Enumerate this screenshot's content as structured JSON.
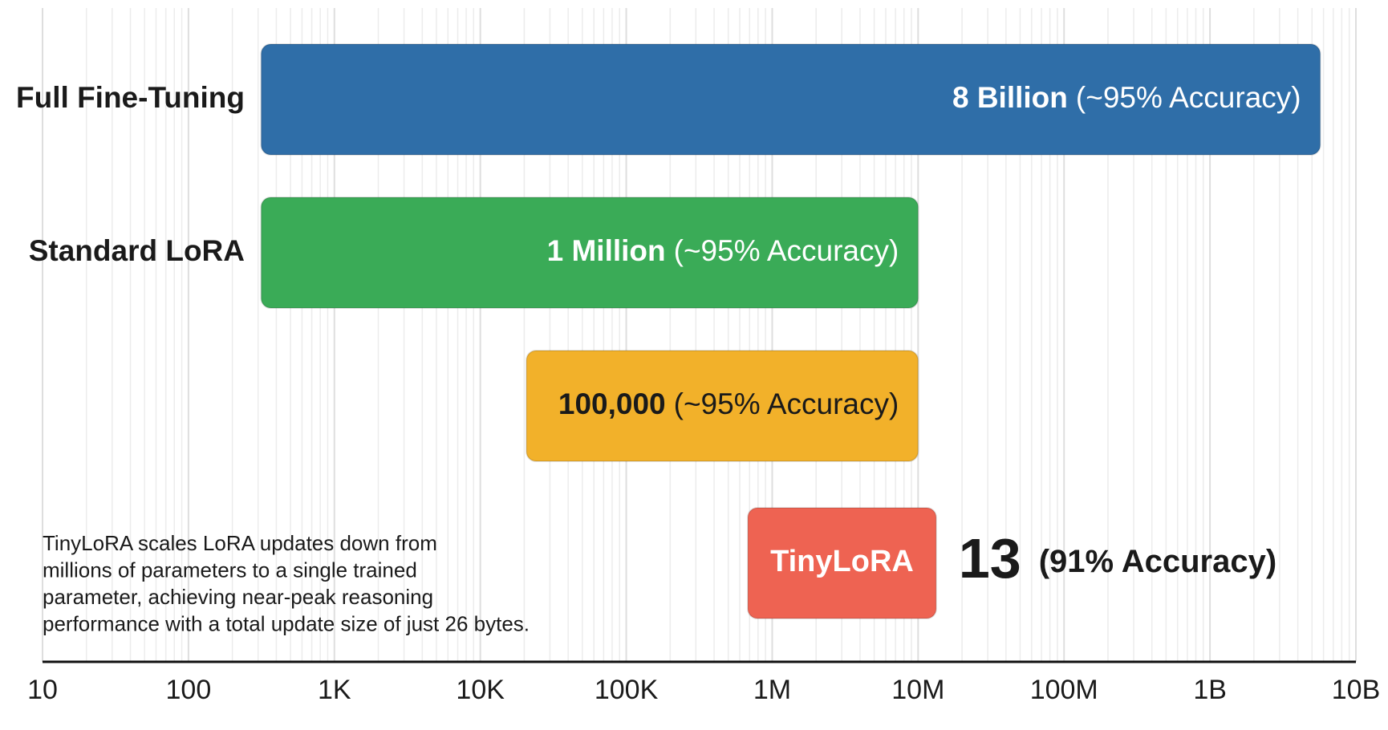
{
  "chart_data": {
    "type": "range-bar",
    "orientation": "horizontal",
    "xscale": "log",
    "xlim": [
      10,
      10000000000
    ],
    "xticks": [
      10,
      100,
      {
        "value": 1000,
        "label": "1K"
      },
      {
        "value": 10000,
        "label": "10K"
      },
      {
        "value": 100000,
        "label": "100K"
      },
      {
        "value": 1000000,
        "label": "1M"
      },
      {
        "value": 10000000,
        "label": "10M"
      },
      {
        "value": 100000000,
        "label": "100M"
      },
      {
        "value": 1000000000,
        "label": "1B"
      },
      {
        "value": 10000000000,
        "label": "10B"
      }
    ],
    "grid": true,
    "minor_grid": true,
    "bars": [
      {
        "category": "Full Fine-Tuning",
        "start": 315,
        "end": 5700000000,
        "color": "#2f6ea8",
        "label_color": "#ffffff",
        "value_label": "8 Billion",
        "accuracy": "(~95% Accuracy)"
      },
      {
        "category": "Standard LoRA",
        "start": 315,
        "end": 10000000,
        "color": "#3aab57",
        "label_color": "#ffffff",
        "value_label": "1 Million",
        "accuracy": "(~95% Accuracy)"
      },
      {
        "category": null,
        "start": 20700,
        "end": 10000000,
        "color": "#f2b12a",
        "label_color": "#1a1a1a",
        "value_label": "100,000",
        "accuracy": "(~95% Accuracy)"
      },
      {
        "category": null,
        "start": 681000,
        "end": 13300000,
        "color": "#ee6352",
        "label_color": "#ffffff",
        "bar_text": "TinyLoRA",
        "value_label": "13",
        "accuracy": "(91% Accuracy)"
      }
    ],
    "note": [
      "TinyLoRA scales LoRA updates down from",
      "millions of parameters to a single trained",
      "parameter, achieving near-peak reasoning",
      "performance with a total update size of just 26 bytes."
    ]
  }
}
